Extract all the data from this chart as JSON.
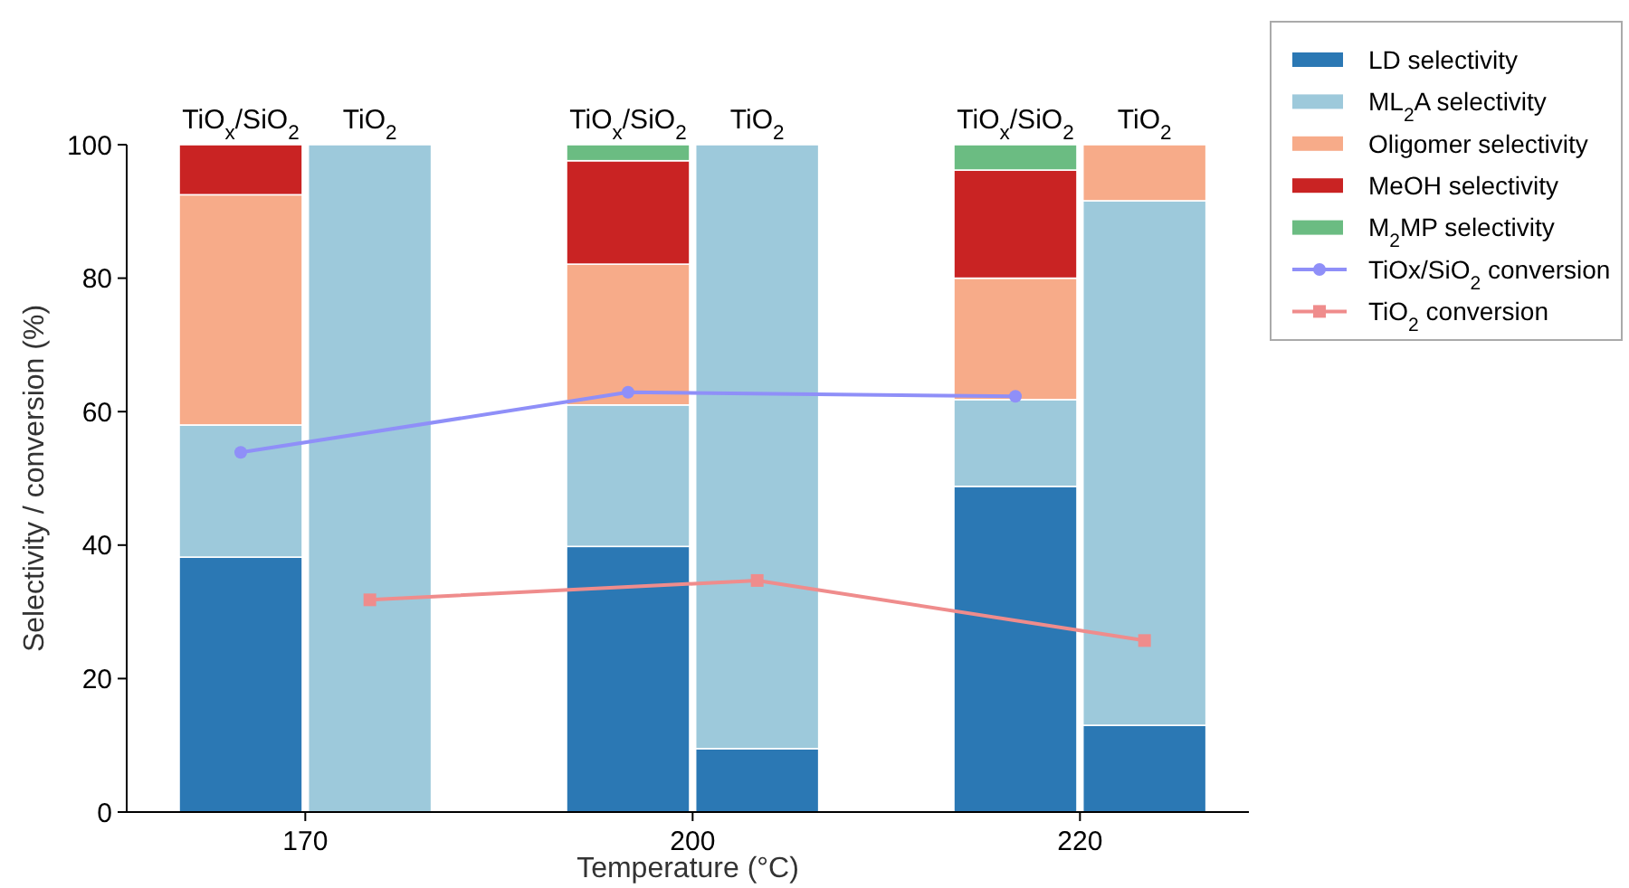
{
  "chart_data": {
    "type": "bar",
    "stacked": true,
    "xlabel": "Temperature (°C)",
    "ylabel": "Selectivity / conversion (%)",
    "categories": [
      "TiO$_{x}$/SiO$_{2}$",
      "TiO$_{2}$",
      null,
      "TiO$_{x}$/SiO$_{2}$",
      "TiO$_{2}$",
      null,
      "TiO$_{x}$/SiO$_{2}$",
      "TiO$_{2}$"
    ],
    "annotations": [
      "170",
      "200",
      "220"
    ],
    "ylim": [
      0,
      100
    ],
    "yticks": [
      0,
      20,
      40,
      60,
      80,
      100
    ],
    "grid": false,
    "legend": "top right",
    "series": [
      {
        "name": "LD selectivity",
        "color": "#2b78b4",
        "values": [
          38.2,
          0,
          null,
          39.8,
          9.5,
          null,
          48.8,
          13
        ]
      },
      {
        "name": "ML$_{2}$A selectivity",
        "color": "#9dc9db",
        "values": [
          19.8,
          100,
          null,
          21.2,
          90.5,
          null,
          13,
          78.6
        ]
      },
      {
        "name": "Oligomer selectivity",
        "color": "#f7ab89",
        "values": [
          34.5,
          0,
          null,
          21.1,
          0,
          null,
          18.2,
          8.4
        ]
      },
      {
        "name": "MeOH selectivity",
        "color": "#c92323",
        "values": [
          7.5,
          0,
          null,
          15.5,
          0,
          null,
          16.2,
          0
        ]
      },
      {
        "name": "M$_{2}$MP selectivity",
        "color": "#6bbc82",
        "values": [
          0,
          0,
          null,
          2.4,
          0,
          null,
          3.8,
          0
        ]
      },
      {
        "name": "TiOx/SiO$_{2}$ conversion",
        "type": "line",
        "marker": "circle",
        "color": "#8f8ff8",
        "values": [
          53.9,
          null,
          null,
          62.9,
          null,
          null,
          62.3,
          null
        ]
      },
      {
        "name": "TiO$_{2}$ conversion",
        "type": "line",
        "marker": "square",
        "color": "#ef8c8c",
        "values": [
          null,
          31.8,
          null,
          null,
          34.7,
          null,
          null,
          25.7
        ]
      }
    ]
  }
}
